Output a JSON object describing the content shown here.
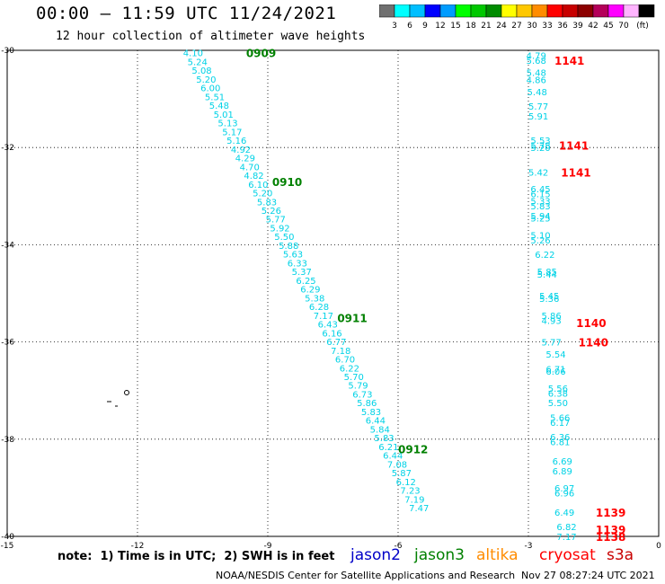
{
  "header": {
    "title": "00:00 – 11:59 UTC 11/24/2021",
    "subtitle": "12 hour collection of altimeter wave heights"
  },
  "colorbar": {
    "colors": [
      "#707070",
      "#00ffff",
      "#00bfff",
      "#0000ff",
      "#009cff",
      "#00ff00",
      "#00c800",
      "#008c00",
      "#ffff00",
      "#ffc800",
      "#ff8c00",
      "#ff0000",
      "#c80000",
      "#8c0000",
      "#b4005a",
      "#ff00ff",
      "#ffb4ff",
      "#000000"
    ],
    "labels": [
      "3",
      "6",
      "9",
      "12",
      "15",
      "18",
      "21",
      "24",
      "27",
      "30",
      "33",
      "36",
      "39",
      "42",
      "45",
      "70",
      "(ft)"
    ]
  },
  "axes": {
    "x_ticks": [
      "-15",
      "-12",
      "-9",
      "-6",
      "-3",
      "0"
    ],
    "y_ticks": [
      "-30",
      "-32",
      "-34",
      "-36",
      "-38",
      "-40"
    ]
  },
  "chart_data": {
    "type": "scatter",
    "title": "00:00 – 11:59 UTC 11/24/2021",
    "xlabel": "",
    "ylabel": "",
    "xlim": [
      -15,
      0
    ],
    "ylim": [
      -40,
      -30
    ],
    "grid": true,
    "passes": [
      {
        "label": "0909",
        "color": "#008000",
        "x": -9.5,
        "y": -30.05
      },
      {
        "label": "0910",
        "color": "#008000",
        "x": -8.9,
        "y": -32.7
      },
      {
        "label": "0911",
        "color": "#008000",
        "x": -7.4,
        "y": -35.5
      },
      {
        "label": "0912",
        "color": "#008000",
        "x": -6.0,
        "y": -38.2
      },
      {
        "label": "1141",
        "color": "#ff0000",
        "x": -2.4,
        "y": -30.2
      },
      {
        "label": "1141",
        "color": "#ff0000",
        "x": -2.3,
        "y": -31.95
      },
      {
        "label": "1141",
        "color": "#ff0000",
        "x": -2.25,
        "y": -32.5
      },
      {
        "label": "1140",
        "color": "#ff0000",
        "x": -1.9,
        "y": -35.6
      },
      {
        "label": "1140",
        "color": "#ff0000",
        "x": -1.85,
        "y": -36.0
      },
      {
        "label": "1139",
        "color": "#ff0000",
        "x": -1.45,
        "y": -39.5
      },
      {
        "label": "1139",
        "color": "#ff0000",
        "x": -1.45,
        "y": -39.85
      },
      {
        "label": "1138",
        "color": "#ff0000",
        "x": -1.45,
        "y": -40.0
      }
    ],
    "series": [
      {
        "name": "jason3",
        "color": "#00d2e6",
        "points": [
          {
            "x": -10.95,
            "y": -30.05,
            "v": "4.10"
          },
          {
            "x": -10.85,
            "y": -30.23,
            "v": "5.24"
          },
          {
            "x": -10.75,
            "y": -30.41,
            "v": "5.08"
          },
          {
            "x": -10.65,
            "y": -30.59,
            "v": "5.20"
          },
          {
            "x": -10.55,
            "y": -30.77,
            "v": "6.00"
          },
          {
            "x": -10.45,
            "y": -30.95,
            "v": "5.51"
          },
          {
            "x": -10.35,
            "y": -31.13,
            "v": "5.48"
          },
          {
            "x": -10.25,
            "y": -31.31,
            "v": "5.01"
          },
          {
            "x": -10.15,
            "y": -31.49,
            "v": "5.13"
          },
          {
            "x": -10.05,
            "y": -31.67,
            "v": "5.17"
          },
          {
            "x": -9.95,
            "y": -31.85,
            "v": "5.16"
          },
          {
            "x": -9.85,
            "y": -32.03,
            "v": "4.92"
          },
          {
            "x": -9.75,
            "y": -32.21,
            "v": "4.29"
          },
          {
            "x": -9.65,
            "y": -32.39,
            "v": "4.70"
          },
          {
            "x": -9.55,
            "y": -32.57,
            "v": "4.82"
          },
          {
            "x": -9.45,
            "y": -32.75,
            "v": "6.10"
          },
          {
            "x": -9.35,
            "y": -32.93,
            "v": "5.20"
          },
          {
            "x": -9.25,
            "y": -33.11,
            "v": "5.83"
          },
          {
            "x": -9.15,
            "y": -33.29,
            "v": "5.26"
          },
          {
            "x": -9.05,
            "y": -33.47,
            "v": "5.77"
          },
          {
            "x": -8.95,
            "y": -33.65,
            "v": "5.92"
          },
          {
            "x": -8.85,
            "y": -33.83,
            "v": "5.50"
          },
          {
            "x": -8.75,
            "y": -34.01,
            "v": "5.88"
          },
          {
            "x": -8.65,
            "y": -34.19,
            "v": "5.63"
          },
          {
            "x": -8.55,
            "y": -34.37,
            "v": "6.33"
          },
          {
            "x": -8.45,
            "y": -34.55,
            "v": "5.37"
          },
          {
            "x": -8.35,
            "y": -34.73,
            "v": "6.25"
          },
          {
            "x": -8.25,
            "y": -34.91,
            "v": "6.29"
          },
          {
            "x": -8.15,
            "y": -35.09,
            "v": "5.38"
          },
          {
            "x": -8.05,
            "y": -35.27,
            "v": "6.28"
          },
          {
            "x": -7.95,
            "y": -35.45,
            "v": "7.17"
          },
          {
            "x": -7.85,
            "y": -35.63,
            "v": "6.43"
          },
          {
            "x": -7.75,
            "y": -35.81,
            "v": "6.16"
          },
          {
            "x": -7.65,
            "y": -35.99,
            "v": "6.77"
          },
          {
            "x": -7.55,
            "y": -36.17,
            "v": "7.18"
          },
          {
            "x": -7.45,
            "y": -36.35,
            "v": "6.70"
          },
          {
            "x": -7.35,
            "y": -36.53,
            "v": "6.22"
          },
          {
            "x": -7.25,
            "y": -36.71,
            "v": "5.70"
          },
          {
            "x": -7.15,
            "y": -36.89,
            "v": "5.79"
          },
          {
            "x": -7.05,
            "y": -37.07,
            "v": "6.73"
          },
          {
            "x": -6.95,
            "y": -37.25,
            "v": "5.86"
          },
          {
            "x": -6.85,
            "y": -37.43,
            "v": "5.83"
          },
          {
            "x": -6.75,
            "y": -37.61,
            "v": "6.44"
          },
          {
            "x": -6.65,
            "y": -37.79,
            "v": "5.84"
          },
          {
            "x": -6.55,
            "y": -37.97,
            "v": "5.83"
          },
          {
            "x": -6.45,
            "y": -38.15,
            "v": "6.21"
          },
          {
            "x": -6.35,
            "y": -38.33,
            "v": "6.44"
          },
          {
            "x": -6.25,
            "y": -38.51,
            "v": "7.08"
          },
          {
            "x": -6.15,
            "y": -38.69,
            "v": "5.87"
          },
          {
            "x": -6.05,
            "y": -38.87,
            "v": "6.12"
          },
          {
            "x": -5.95,
            "y": -39.05,
            "v": "7.23"
          },
          {
            "x": -5.85,
            "y": -39.23,
            "v": "7.19"
          },
          {
            "x": -5.75,
            "y": -39.41,
            "v": "7.47"
          }
        ]
      },
      {
        "name": "cryosat",
        "color": "#00d2e6",
        "points": [
          {
            "x": -3.05,
            "y": -30.1,
            "v": "4.79"
          },
          {
            "x": -3.05,
            "y": -30.2,
            "v": "5.68"
          },
          {
            "x": -3.05,
            "y": -30.45,
            "v": "5.48"
          },
          {
            "x": -3.05,
            "y": -30.6,
            "v": "4.86"
          },
          {
            "x": -3.03,
            "y": -30.85,
            "v": "5.48"
          },
          {
            "x": -3.0,
            "y": -31.15,
            "v": "5.77"
          },
          {
            "x": -3.0,
            "y": -31.35,
            "v": "5.91"
          },
          {
            "x": -2.95,
            "y": -31.85,
            "v": "5.53"
          },
          {
            "x": -2.95,
            "y": -31.95,
            "v": "5.78"
          },
          {
            "x": -2.95,
            "y": -32.0,
            "v": "5.20"
          },
          {
            "x": -3.0,
            "y": -32.5,
            "v": "5.42"
          },
          {
            "x": -2.95,
            "y": -32.85,
            "v": "6.45"
          },
          {
            "x": -2.95,
            "y": -32.95,
            "v": "6.15"
          },
          {
            "x": -2.95,
            "y": -33.1,
            "v": "5.33"
          },
          {
            "x": -2.95,
            "y": -33.2,
            "v": "5.83"
          },
          {
            "x": -2.95,
            "y": -33.4,
            "v": "5.94"
          },
          {
            "x": -2.95,
            "y": -33.45,
            "v": "5.25"
          },
          {
            "x": -2.95,
            "y": -33.8,
            "v": "5.10"
          },
          {
            "x": -2.95,
            "y": -33.9,
            "v": "5.26"
          },
          {
            "x": -2.85,
            "y": -34.2,
            "v": "6.22"
          },
          {
            "x": -2.8,
            "y": -34.55,
            "v": "5.85"
          },
          {
            "x": -2.8,
            "y": -34.6,
            "v": "5.44"
          },
          {
            "x": -2.75,
            "y": -35.05,
            "v": "5.45"
          },
          {
            "x": -2.75,
            "y": -35.1,
            "v": "5.36"
          },
          {
            "x": -2.7,
            "y": -35.45,
            "v": "5.86"
          },
          {
            "x": -2.7,
            "y": -35.55,
            "v": "4.93"
          },
          {
            "x": -2.7,
            "y": -36.0,
            "v": "5.77"
          },
          {
            "x": -2.6,
            "y": -36.25,
            "v": "5.54"
          },
          {
            "x": -2.6,
            "y": -36.55,
            "v": "6.71"
          },
          {
            "x": -2.6,
            "y": -36.6,
            "v": "6.06"
          },
          {
            "x": -2.55,
            "y": -36.95,
            "v": "5.56"
          },
          {
            "x": -2.55,
            "y": -37.05,
            "v": "6.38"
          },
          {
            "x": -2.55,
            "y": -37.25,
            "v": "5.50"
          },
          {
            "x": -2.5,
            "y": -37.55,
            "v": "5.66"
          },
          {
            "x": -2.5,
            "y": -37.65,
            "v": "6.17"
          },
          {
            "x": -2.5,
            "y": -37.95,
            "v": "6.36"
          },
          {
            "x": -2.5,
            "y": -38.05,
            "v": "6.81"
          },
          {
            "x": -2.45,
            "y": -38.45,
            "v": "6.69"
          },
          {
            "x": -2.45,
            "y": -38.65,
            "v": "6.89"
          },
          {
            "x": -2.4,
            "y": -39.0,
            "v": "6.97"
          },
          {
            "x": -2.4,
            "y": -39.1,
            "v": "6.96"
          },
          {
            "x": -2.4,
            "y": -39.5,
            "v": "6.49"
          },
          {
            "x": -2.35,
            "y": -39.8,
            "v": "6.82"
          },
          {
            "x": -2.35,
            "y": -40.0,
            "v": "7.17"
          }
        ]
      }
    ]
  },
  "note": "note:  1) Time is in UTC;  2) SWH is in feet",
  "legend": [
    {
      "label": "jason2",
      "color": "#0000c8"
    },
    {
      "label": "jason3",
      "color": "#008000"
    },
    {
      "label": "altika",
      "color": "#ff8c00"
    },
    {
      "label": "cryosat",
      "color": "#ff0000"
    },
    {
      "label": "s3a",
      "color": "#c80000"
    }
  ],
  "footer": {
    "credit": "NOAA/NESDIS Center for Satellite Applications and Research",
    "timestamp": "Nov 27 08:27:24 UTC 2021"
  }
}
